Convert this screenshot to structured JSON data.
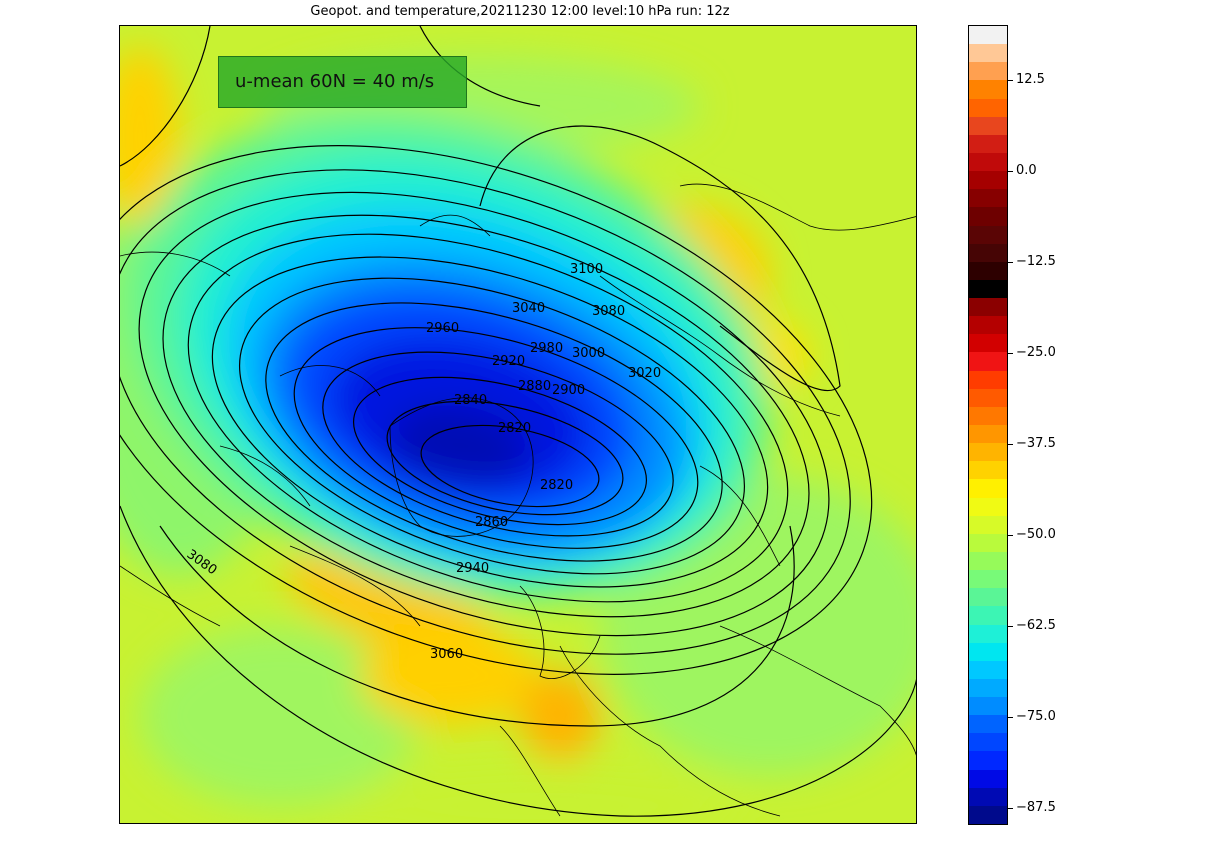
{
  "title": "Geopot. and temperature,20211230 12:00 level:10 hPa run: 12z",
  "annotation": "u-mean 60N = 40 m/s",
  "contour_labels": [
    "3100",
    "3080",
    "3040",
    "3020",
    "3000",
    "2980",
    "2960",
    "2920",
    "2900",
    "2880",
    "2840",
    "2820",
    "2820",
    "2860",
    "2940",
    "3060",
    "3080"
  ],
  "colorbar": {
    "ticks": [
      "12.5",
      "0.0",
      "−12.5",
      "−25.0",
      "−37.5",
      "−50.0",
      "−62.5",
      "−75.0",
      "−87.5"
    ],
    "colors": [
      "#f2f2f2",
      "#ffc896",
      "#ffa050",
      "#ff8200",
      "#ff6400",
      "#e8461e",
      "#d21e14",
      "#c00a0a",
      "#a50000",
      "#870000",
      "#6e0000",
      "#5a0505",
      "#460505",
      "#2d0000",
      "#000000",
      "#8b0000",
      "#b40000",
      "#d20000",
      "#f01414",
      "#ff3c00",
      "#ff5a00",
      "#ff7800",
      "#ff9600",
      "#ffb400",
      "#ffd200",
      "#fff000",
      "#f0fa14",
      "#d7fa28",
      "#b9fa3c",
      "#96fa5a",
      "#78fa78",
      "#5af596",
      "#3cf5b4",
      "#1ef0d7",
      "#00e6f0",
      "#00c8ff",
      "#00aaff",
      "#008cff",
      "#0064ff",
      "#0046ff",
      "#0028ff",
      "#000ae6",
      "#000ab4",
      "#000a8c"
    ]
  }
}
